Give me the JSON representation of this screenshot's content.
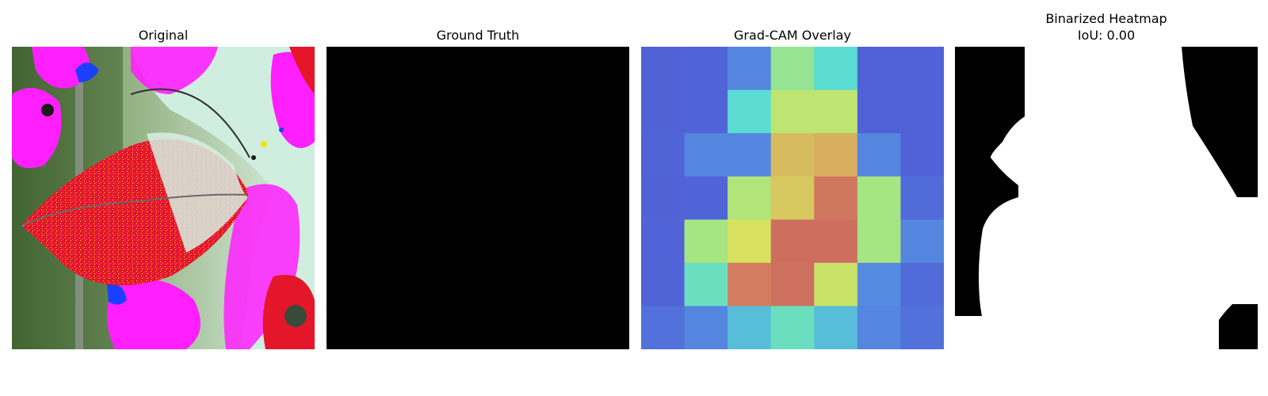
{
  "chart_data": [
    {
      "type": "image",
      "title": "Original",
      "image_description": "leaf photo with false-color red, magenta and pale-green regions"
    },
    {
      "type": "image",
      "title": "Ground Truth",
      "fill_color": "#000000"
    },
    {
      "type": "heatmap",
      "title": "Grad-CAM Overlay",
      "colormap": "jet-overlay",
      "grid_rows": 7,
      "grid_cols": 7,
      "values": [
        [
          0.15,
          0.2,
          0.3,
          0.55,
          0.45,
          0.15,
          0.15
        ],
        [
          0.15,
          0.2,
          0.45,
          0.62,
          0.62,
          0.15,
          0.15
        ],
        [
          0.2,
          0.3,
          0.3,
          0.72,
          0.74,
          0.3,
          0.15
        ],
        [
          0.15,
          0.2,
          0.6,
          0.7,
          0.85,
          0.58,
          0.22
        ],
        [
          0.2,
          0.58,
          0.66,
          0.9,
          0.9,
          0.58,
          0.3
        ],
        [
          0.2,
          0.48,
          0.82,
          0.88,
          0.64,
          0.32,
          0.22
        ],
        [
          0.24,
          0.3,
          0.4,
          0.48,
          0.4,
          0.3,
          0.24
        ]
      ]
    },
    {
      "type": "image",
      "title": "Binarized Heatmap\nIoU: 0.00",
      "iou": 0.0,
      "foreground_color": "#ffffff",
      "background_color": "#000000"
    }
  ]
}
